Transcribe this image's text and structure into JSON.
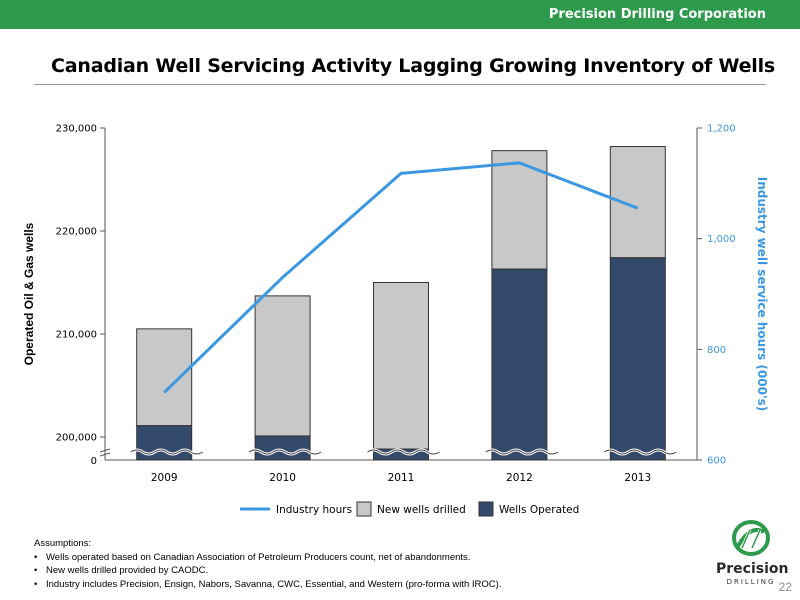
{
  "header": {
    "brand": "Precision Drilling Corporation"
  },
  "slide": {
    "title": "Canadian Well Servicing Activity Lagging Growing Inventory of Wells",
    "page_number": "22"
  },
  "colors": {
    "brand_green": "#2e9a4b",
    "wells_operated": "#344a6b",
    "new_wells": "#c8c8c8",
    "industry_line": "#3b97e0",
    "right_axis_text": "#3b97e0"
  },
  "chart_data": {
    "type": "bar",
    "categories": [
      "2009",
      "2010",
      "2011",
      "2012",
      "2013"
    ],
    "ylabel": "Operated Oil & Gas wells",
    "y2label": "Industry well service hours (000's)",
    "ylim": [
      199000,
      230000
    ],
    "y_break": true,
    "yticks": [
      "230,000",
      "220,000",
      "210,000",
      "200,000"
    ],
    "yticks_values": [
      230000,
      220000,
      210000,
      200000
    ],
    "y_zero_label": "0",
    "y2lim": [
      600,
      1200
    ],
    "y2ticks": [
      "1,200",
      "1,000",
      "800",
      "600"
    ],
    "y2ticks_values": [
      1200,
      1000,
      800,
      600
    ],
    "series": [
      {
        "name": "Wells Operated",
        "values": [
          201100,
          200100,
          198800,
          216300,
          217400
        ],
        "stack": "total"
      },
      {
        "name": "New wells drilled",
        "values": [
          9400,
          13600,
          16200,
          11500,
          10800
        ],
        "stack": "total"
      },
      {
        "name": "Industry hours",
        "values": [
          722,
          930,
          1118,
          1137,
          1055
        ],
        "axis": "right",
        "kind": "line"
      }
    ],
    "legend": [
      "Industry hours",
      "New wells drilled",
      "Wells Operated"
    ],
    "legend_position": "bottom",
    "grid": false
  },
  "assumptions": {
    "heading": "Assumptions:",
    "items": [
      "Wells operated based on Canadian Association of Petroleum Producers count, net of abandonments.",
      "New wells drilled provided by CAODC.",
      "Industry includes Precision, Ensign, Nabors, Savanna, CWC, Essential, and Western (pro-forma with IROC)."
    ]
  },
  "logo": {
    "word": "Precision",
    "sub": "DRILLING"
  }
}
